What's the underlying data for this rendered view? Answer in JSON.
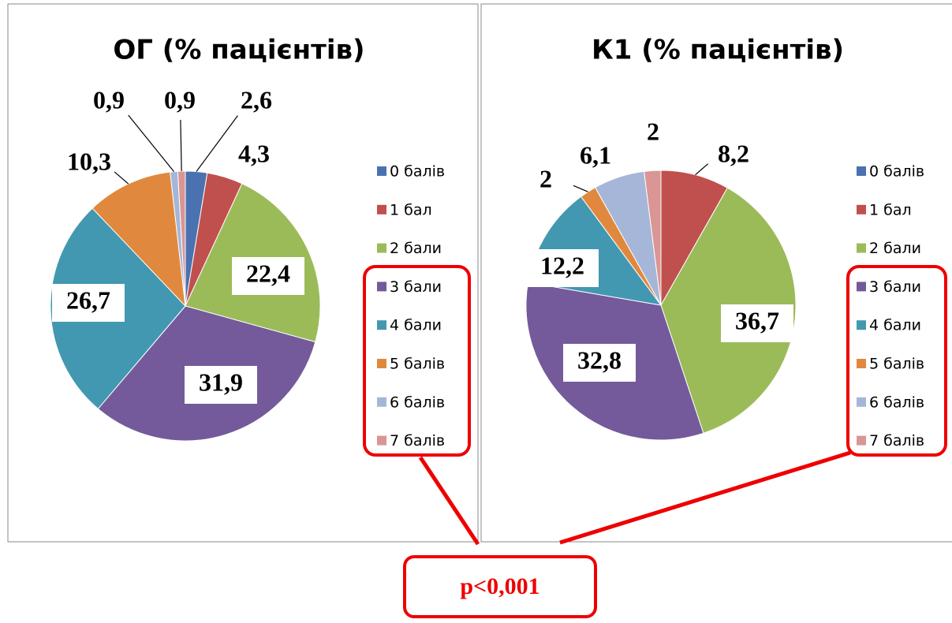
{
  "chart_data": [
    {
      "type": "pie",
      "title": "ОГ (% пацієнтів)",
      "categories": [
        "0 балів",
        "1 бал",
        "2 бали",
        "3 бали",
        "4 бали",
        "5 балів",
        "6 балів",
        "7 балів"
      ],
      "values": [
        2.6,
        4.3,
        22.4,
        31.9,
        26.7,
        10.3,
        0.9,
        0.9
      ],
      "value_labels": [
        "2,6",
        "4,3",
        "22,4",
        "31,9",
        "26,7",
        "10,3",
        "0,9",
        "0,9"
      ],
      "colors": [
        "#4a72b0",
        "#c0504d",
        "#9bbb59",
        "#745a9a",
        "#4298b0",
        "#e0893e",
        "#a5b6d8",
        "#d99694"
      ],
      "legend": "right"
    },
    {
      "type": "pie",
      "title": "К1 (% пацієнтів)",
      "categories": [
        "0 балів",
        "1 бал",
        "2 бали",
        "3 бали",
        "4 бали",
        "5 балів",
        "6 балів",
        "7 балів"
      ],
      "values": [
        0,
        8.2,
        36.7,
        32.8,
        12.2,
        2,
        6.1,
        2
      ],
      "value_labels": [
        null,
        "8,2",
        "36,7",
        "32,8",
        "12,2",
        "2",
        "6,1",
        "2"
      ],
      "colors": [
        "#4a72b0",
        "#c0504d",
        "#9bbb59",
        "#745a9a",
        "#4298b0",
        "#e0893e",
        "#a5b6d8",
        "#d99694"
      ],
      "legend": "right"
    }
  ],
  "annotation": "p<0,001"
}
